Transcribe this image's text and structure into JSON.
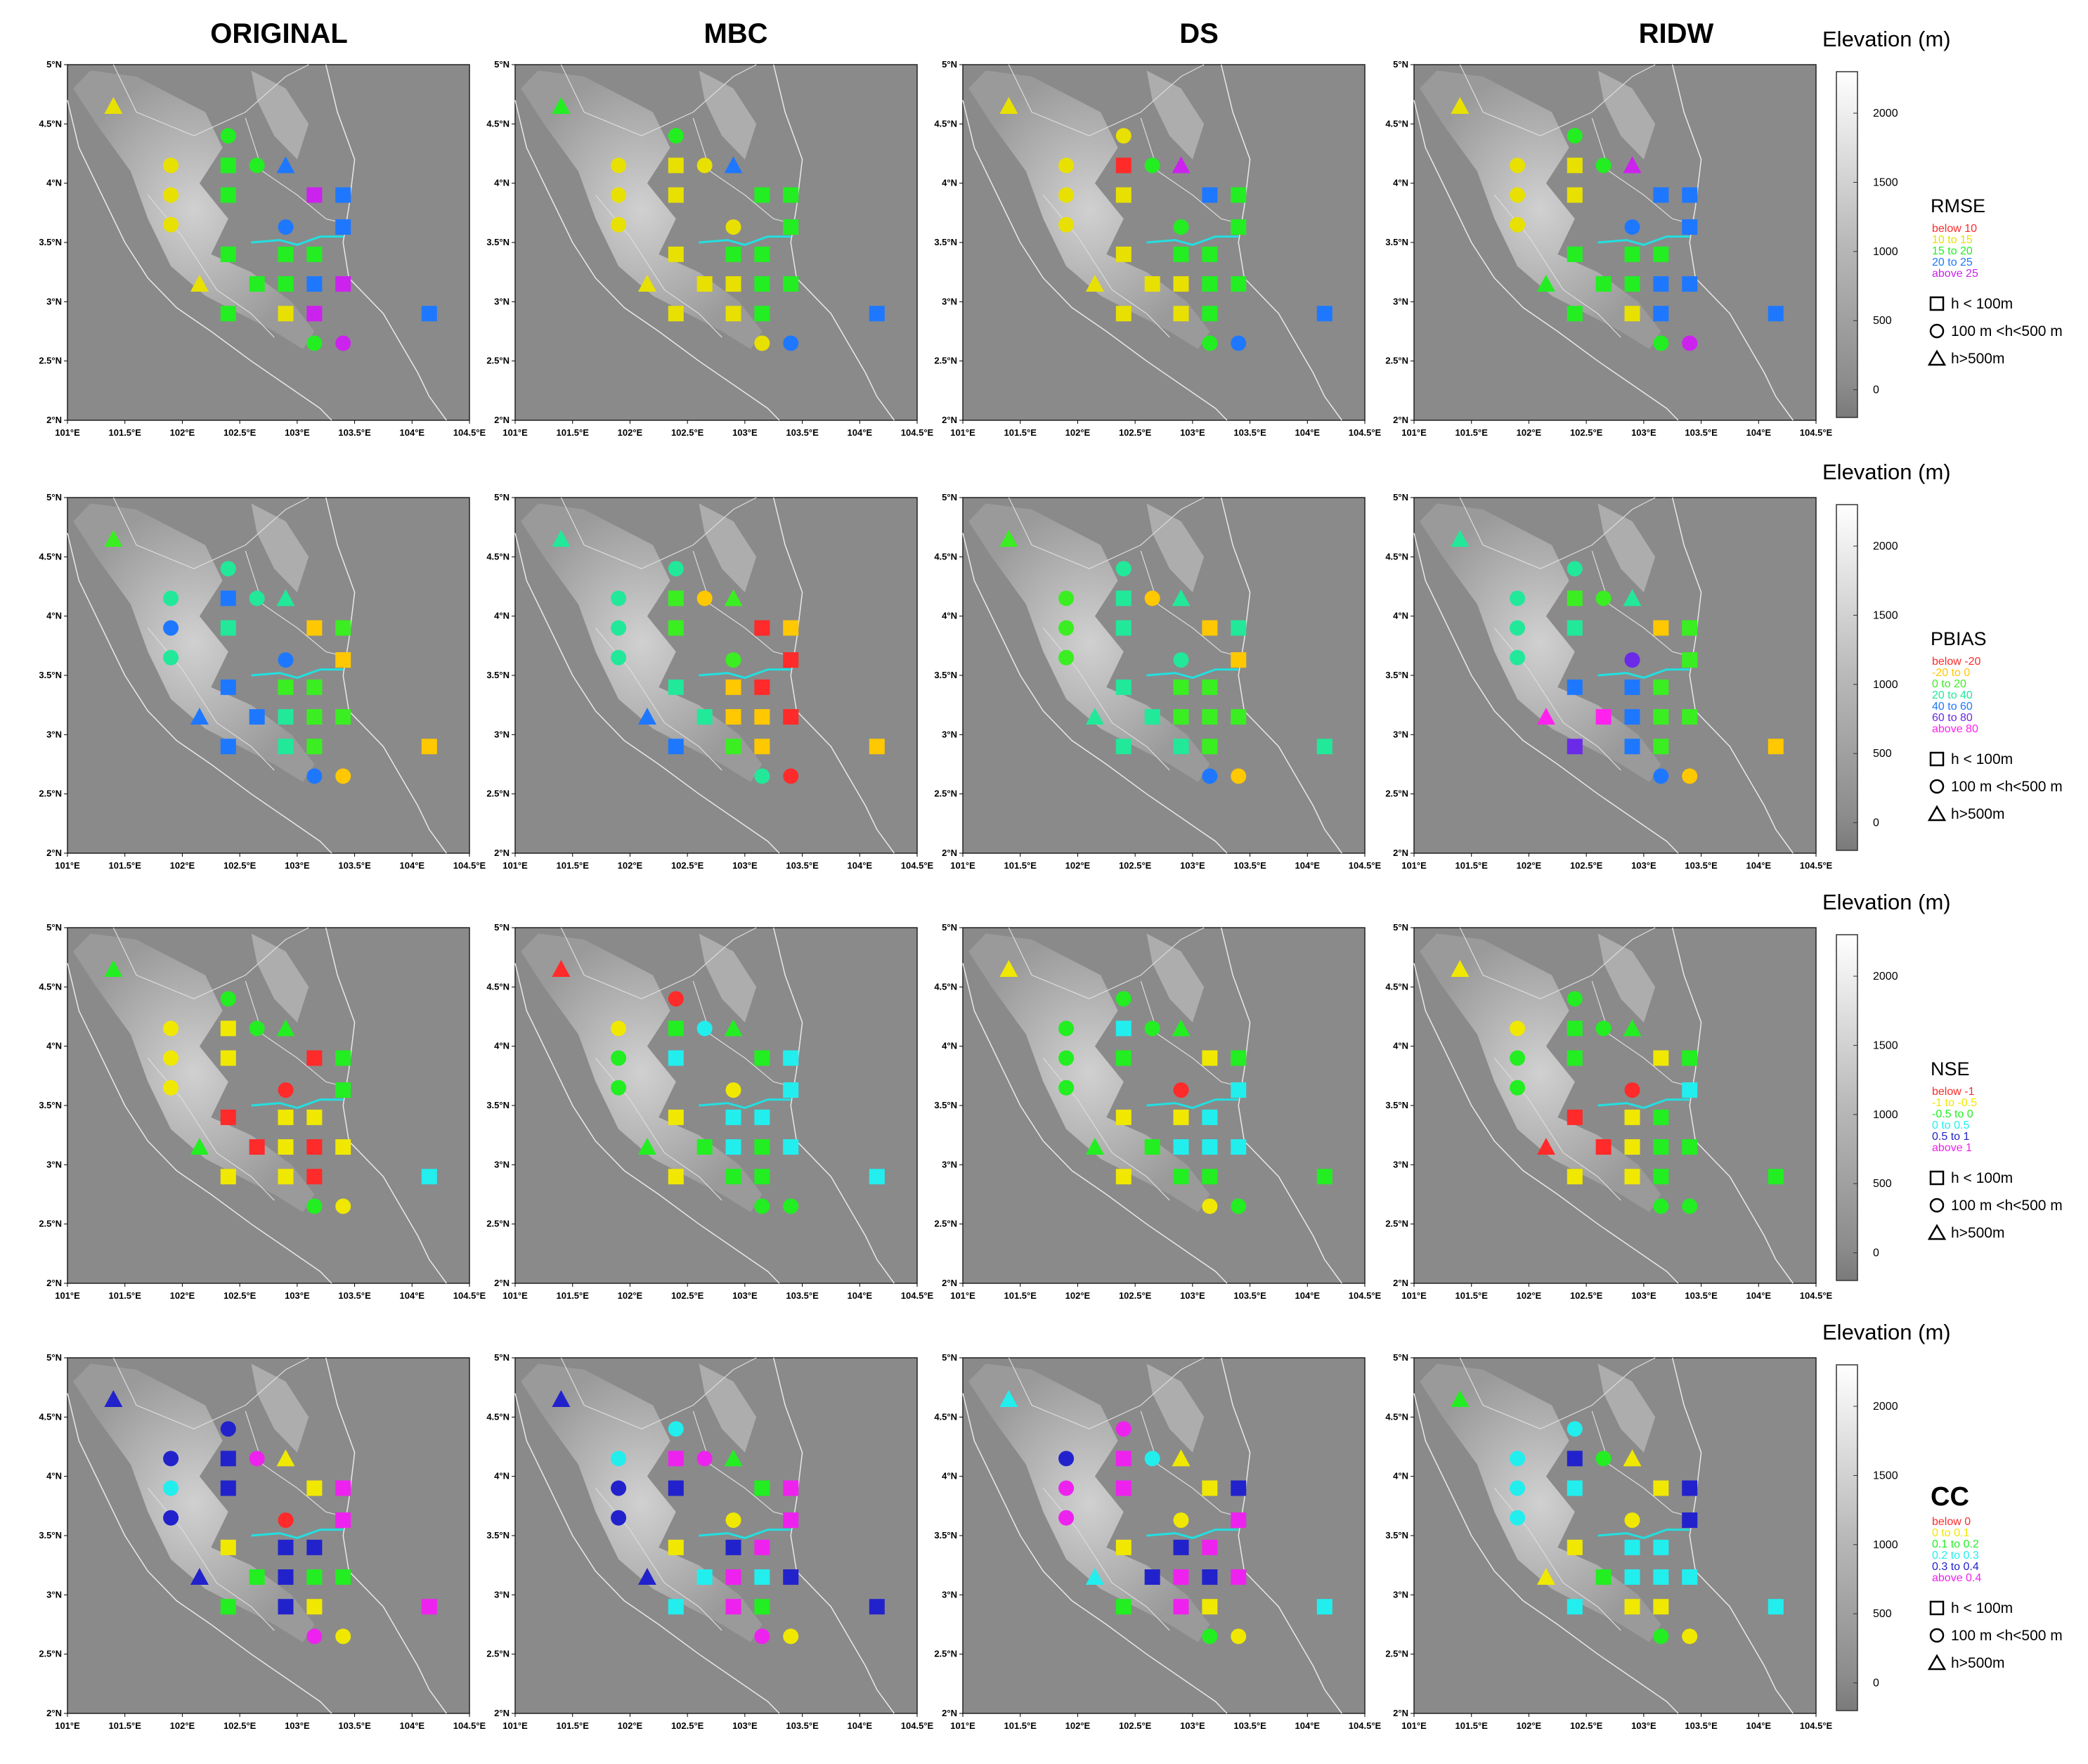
{
  "columns": [
    "ORIGINAL",
    "MBC",
    "DS",
    "RIDW"
  ],
  "axes": {
    "lat_labels": [
      "5°N",
      "4.5°N",
      "4°N",
      "3.5°N",
      "3°N",
      "2.5°N",
      "2°N"
    ],
    "lat_values": [
      5,
      4.5,
      4,
      3.5,
      3,
      2.5,
      2
    ],
    "lon_labels": [
      "101°E",
      "101.5°E",
      "102°E",
      "102.5°E",
      "103°E",
      "103.5°E",
      "104°E",
      "104.5°E"
    ],
    "lon_values": [
      101,
      101.5,
      102,
      102.5,
      103,
      103.5,
      104,
      104.5
    ],
    "lon_range": [
      101,
      104.5
    ],
    "lat_range": [
      2,
      5
    ]
  },
  "colorbar": {
    "title": "Elevation (m)",
    "ticks": [
      "2000",
      "1500",
      "1000",
      "500",
      "0"
    ],
    "tick_values": [
      2000,
      1500,
      1000,
      500,
      0
    ],
    "range": [
      -200,
      2300
    ]
  },
  "shape_legend": {
    "square": "h < 100m",
    "circle": "100 m <h<500 m",
    "triangle": "h>500m"
  },
  "stations": [
    {
      "lon": 101.4,
      "lat": 4.65,
      "shape": "triangle"
    },
    {
      "lon": 101.9,
      "lat": 4.15,
      "shape": "circle"
    },
    {
      "lon": 101.9,
      "lat": 3.9,
      "shape": "circle"
    },
    {
      "lon": 101.9,
      "lat": 3.65,
      "shape": "circle"
    },
    {
      "lon": 102.4,
      "lat": 4.4,
      "shape": "circle"
    },
    {
      "lon": 102.4,
      "lat": 4.15,
      "shape": "square"
    },
    {
      "lon": 102.4,
      "lat": 3.9,
      "shape": "square"
    },
    {
      "lon": 102.65,
      "lat": 4.15,
      "shape": "circle"
    },
    {
      "lon": 102.9,
      "lat": 4.15,
      "shape": "triangle"
    },
    {
      "lon": 103.15,
      "lat": 3.9,
      "shape": "square"
    },
    {
      "lon": 103.4,
      "lat": 3.9,
      "shape": "square"
    },
    {
      "lon": 102.9,
      "lat": 3.63,
      "shape": "circle"
    },
    {
      "lon": 103.4,
      "lat": 3.63,
      "shape": "square"
    },
    {
      "lon": 102.4,
      "lat": 3.4,
      "shape": "square"
    },
    {
      "lon": 102.9,
      "lat": 3.4,
      "shape": "square"
    },
    {
      "lon": 103.15,
      "lat": 3.4,
      "shape": "square"
    },
    {
      "lon": 102.15,
      "lat": 3.15,
      "shape": "triangle"
    },
    {
      "lon": 102.65,
      "lat": 3.15,
      "shape": "square"
    },
    {
      "lon": 102.9,
      "lat": 3.15,
      "shape": "square"
    },
    {
      "lon": 103.15,
      "lat": 3.15,
      "shape": "square"
    },
    {
      "lon": 103.4,
      "lat": 3.15,
      "shape": "square"
    },
    {
      "lon": 102.4,
      "lat": 2.9,
      "shape": "square"
    },
    {
      "lon": 102.9,
      "lat": 2.9,
      "shape": "square"
    },
    {
      "lon": 103.15,
      "lat": 2.9,
      "shape": "square"
    },
    {
      "lon": 104.15,
      "lat": 2.9,
      "shape": "square"
    },
    {
      "lon": 103.15,
      "lat": 2.65,
      "shape": "circle"
    },
    {
      "lon": 103.4,
      "lat": 2.65,
      "shape": "circle"
    }
  ],
  "rows": [
    {
      "metric": "RMSE",
      "classes": [
        {
          "label": "below  10",
          "color": "#ff2a2a"
        },
        {
          "label": "10  to  15",
          "color": "#e8e000"
        },
        {
          "label": "15  to  20",
          "color": "#22ee22"
        },
        {
          "label": "20  to  25",
          "color": "#1e78ff"
        },
        {
          "label": "above  25",
          "color": "#cc22ee"
        }
      ],
      "values": [
        [
          "1",
          "1",
          "1",
          "1",
          "2",
          "2",
          "2",
          "2",
          "3",
          "4",
          "3",
          "3",
          "3",
          "2",
          "2",
          "2",
          "1",
          "2",
          "2",
          "3",
          "4",
          "2",
          "1",
          "4",
          "3",
          "2",
          "4"
        ],
        [
          "2",
          "1",
          "1",
          "1",
          "2",
          "1",
          "1",
          "1",
          "3",
          "2",
          "2",
          "1",
          "2",
          "1",
          "2",
          "2",
          "1",
          "1",
          "1",
          "2",
          "2",
          "1",
          "1",
          "2",
          "3",
          "1",
          "3"
        ],
        [
          "1",
          "1",
          "1",
          "1",
          "1",
          "0",
          "1",
          "2",
          "4",
          "3",
          "2",
          "2",
          "2",
          "1",
          "2",
          "2",
          "1",
          "1",
          "1",
          "2",
          "2",
          "1",
          "1",
          "2",
          "3",
          "2",
          "3"
        ],
        [
          "1",
          "1",
          "1",
          "1",
          "2",
          "1",
          "1",
          "2",
          "4",
          "3",
          "3",
          "3",
          "3",
          "2",
          "2",
          "2",
          "2",
          "2",
          "2",
          "3",
          "3",
          "2",
          "1",
          "3",
          "3",
          "2",
          "4"
        ]
      ]
    },
    {
      "metric": "PBIAS",
      "classes": [
        {
          "label": "below  -20",
          "color": "#ff2a2a"
        },
        {
          "label": "-20  to  0",
          "color": "#ffc800"
        },
        {
          "label": "0  to  20",
          "color": "#3aee22"
        },
        {
          "label": "20  to  40",
          "color": "#22e89a"
        },
        {
          "label": "40  to  60",
          "color": "#1e78ff"
        },
        {
          "label": "60  to  80",
          "color": "#6a2ae8"
        },
        {
          "label": "above  80",
          "color": "#ff22ee"
        }
      ],
      "values": [
        [
          "2",
          "3",
          "4",
          "3",
          "3",
          "4",
          "3",
          "3",
          "3",
          "1",
          "2",
          "4",
          "1",
          "4",
          "2",
          "2",
          "4",
          "4",
          "3",
          "2",
          "2",
          "4",
          "3",
          "2",
          "1",
          "4",
          "1"
        ],
        [
          "3",
          "3",
          "3",
          "3",
          "3",
          "2",
          "2",
          "1",
          "2",
          "0",
          "1",
          "2",
          "0",
          "3",
          "1",
          "0",
          "4",
          "3",
          "1",
          "1",
          "0",
          "4",
          "2",
          "1",
          "1",
          "3",
          "0"
        ],
        [
          "2",
          "2",
          "2",
          "2",
          "3",
          "3",
          "3",
          "1",
          "3",
          "1",
          "3",
          "3",
          "1",
          "3",
          "2",
          "2",
          "3",
          "3",
          "2",
          "2",
          "2",
          "3",
          "3",
          "2",
          "3",
          "4",
          "1"
        ],
        [
          "3",
          "3",
          "3",
          "3",
          "3",
          "2",
          "3",
          "2",
          "3",
          "1",
          "2",
          "5",
          "2",
          "4",
          "4",
          "2",
          "6",
          "6",
          "4",
          "2",
          "2",
          "5",
          "4",
          "2",
          "1",
          "4",
          "1"
        ]
      ]
    },
    {
      "metric": "NSE",
      "classes": [
        {
          "label": "below  -1",
          "color": "#ff2a2a"
        },
        {
          "label": "-1  to  -0.5",
          "color": "#f0e800"
        },
        {
          "label": "-0.5  to  0",
          "color": "#22ee22"
        },
        {
          "label": "0  to  0.5",
          "color": "#22eeee"
        },
        {
          "label": "0.5  to  1",
          "color": "#2222cc"
        },
        {
          "label": "above  1",
          "color": "#ee22ee"
        }
      ],
      "values": [
        [
          "2",
          "1",
          "1",
          "1",
          "2",
          "1",
          "1",
          "2",
          "2",
          "0",
          "2",
          "0",
          "2",
          "0",
          "1",
          "1",
          "2",
          "0",
          "1",
          "0",
          "1",
          "1",
          "1",
          "0",
          "3",
          "2",
          "1"
        ],
        [
          "0",
          "1",
          "2",
          "2",
          "0",
          "2",
          "3",
          "3",
          "2",
          "2",
          "3",
          "1",
          "3",
          "1",
          "3",
          "3",
          "2",
          "2",
          "3",
          "2",
          "3",
          "1",
          "2",
          "2",
          "3",
          "2",
          "2"
        ],
        [
          "1",
          "2",
          "2",
          "2",
          "2",
          "3",
          "2",
          "2",
          "2",
          "1",
          "2",
          "0",
          "3",
          "1",
          "1",
          "3",
          "2",
          "2",
          "3",
          "3",
          "3",
          "1",
          "2",
          "2",
          "2",
          "1",
          "2"
        ],
        [
          "1",
          "1",
          "2",
          "2",
          "2",
          "2",
          "2",
          "2",
          "2",
          "1",
          "2",
          "0",
          "3",
          "0",
          "1",
          "2",
          "0",
          "0",
          "1",
          "2",
          "2",
          "1",
          "1",
          "2",
          "2",
          "2",
          "2"
        ]
      ]
    },
    {
      "metric": "CC",
      "classes": [
        {
          "label": "below  0",
          "color": "#ff2a2a"
        },
        {
          "label": "0  to  0.1",
          "color": "#f0e800"
        },
        {
          "label": "0.1  to  0.2",
          "color": "#22ee22"
        },
        {
          "label": "0.2  to  0.3",
          "color": "#22eeee"
        },
        {
          "label": "0.3  to  0.4",
          "color": "#2222cc"
        },
        {
          "label": "above  0.4",
          "color": "#ee22ee"
        }
      ],
      "values": [
        [
          "4",
          "4",
          "3",
          "4",
          "4",
          "4",
          "4",
          "5",
          "1",
          "1",
          "5",
          "0",
          "5",
          "1",
          "4",
          "4",
          "4",
          "2",
          "4",
          "2",
          "2",
          "2",
          "4",
          "1",
          "5",
          "5",
          "1"
        ],
        [
          "4",
          "3",
          "4",
          "4",
          "3",
          "5",
          "4",
          "5",
          "2",
          "2",
          "5",
          "1",
          "5",
          "1",
          "4",
          "5",
          "4",
          "3",
          "5",
          "3",
          "4",
          "3",
          "5",
          "2",
          "4",
          "5",
          "1"
        ],
        [
          "3",
          "4",
          "5",
          "5",
          "5",
          "5",
          "5",
          "3",
          "1",
          "1",
          "4",
          "1",
          "5",
          "1",
          "4",
          "5",
          "3",
          "4",
          "5",
          "4",
          "5",
          "2",
          "5",
          "1",
          "3",
          "2",
          "1"
        ],
        [
          "2",
          "3",
          "3",
          "3",
          "3",
          "4",
          "3",
          "2",
          "1",
          "1",
          "4",
          "1",
          "4",
          "1",
          "3",
          "3",
          "1",
          "2",
          "3",
          "3",
          "3",
          "3",
          "1",
          "1",
          "3",
          "2",
          "1"
        ]
      ]
    }
  ]
}
